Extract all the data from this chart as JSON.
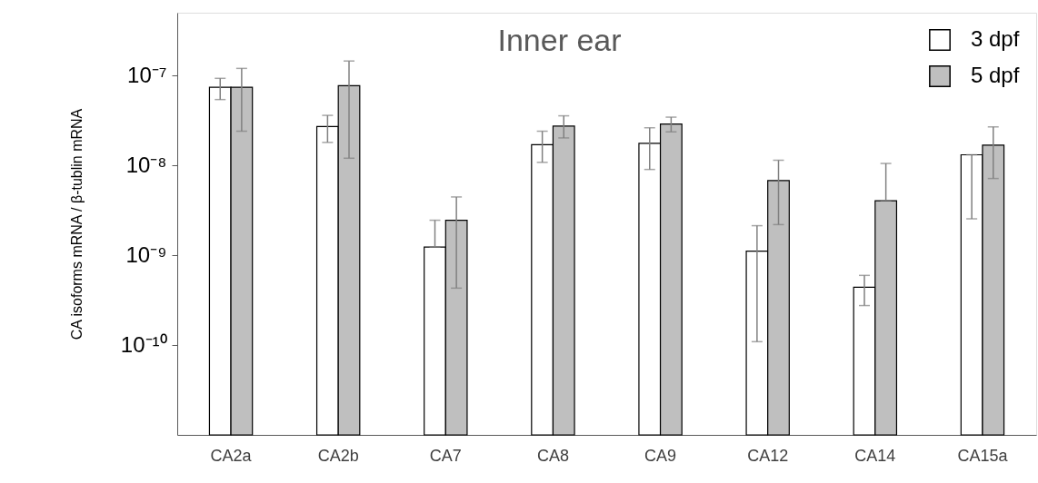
{
  "chart_data": {
    "type": "bar",
    "title": "Inner ear",
    "ylabel": "CA isoforms mRNA / β-tublin mRNA",
    "categories": [
      "CA2a",
      "CA2b",
      "CA7",
      "CA8",
      "CA9",
      "CA12",
      "CA14",
      "CA15a"
    ],
    "series": [
      {
        "name": "3 dpf",
        "color": "#ffffff",
        "values": [
          7.4e-08,
          2.7e-08,
          1.23e-09,
          1.7e-08,
          1.76e-08,
          1.11e-09,
          4.4e-10,
          1.31e-08
        ],
        "errors": [
          [
            5.4e-08,
            9.3e-08
          ],
          [
            1.8e-08,
            3.6e-08
          ],
          [
            1.23e-09,
            2.45e-09
          ],
          [
            1.08e-08,
            2.4e-08
          ],
          [
            9e-09,
            2.62e-08
          ],
          [
            1.09e-10,
            2.13e-09
          ],
          [
            2.75e-10,
            5.96e-10
          ],
          [
            2.54e-09,
            1.31e-08
          ]
        ]
      },
      {
        "name": "5 dpf",
        "color": "#bfbfbf",
        "values": [
          7.4e-08,
          7.7e-08,
          2.45e-09,
          2.73e-08,
          2.88e-08,
          6.76e-09,
          4.04e-09,
          1.68e-08
        ],
        "errors": [
          [
            2.4e-08,
            1.2e-07
          ],
          [
            1.2e-08,
            1.45e-07
          ],
          [
            4.3e-10,
            4.45e-09
          ],
          [
            2.02e-08,
            3.56e-08
          ],
          [
            2.36e-08,
            3.44e-08
          ],
          [
            2.19e-09,
            1.14e-08
          ],
          [
            4.04e-09,
            1.05e-08
          ],
          [
            7.14e-09,
            2.68e-08
          ]
        ]
      }
    ],
    "log": "y",
    "ylim": [
      1e-11,
      5e-07
    ],
    "yticks": [
      {
        "value": 1e-07,
        "label": "10⁻⁷"
      },
      {
        "value": 1e-08,
        "label": "10⁻⁸"
      },
      {
        "value": 1e-09,
        "label": "10⁻⁹"
      },
      {
        "value": 1e-10,
        "label": "10⁻¹⁰"
      }
    ],
    "grid": false,
    "legend": "top right"
  }
}
